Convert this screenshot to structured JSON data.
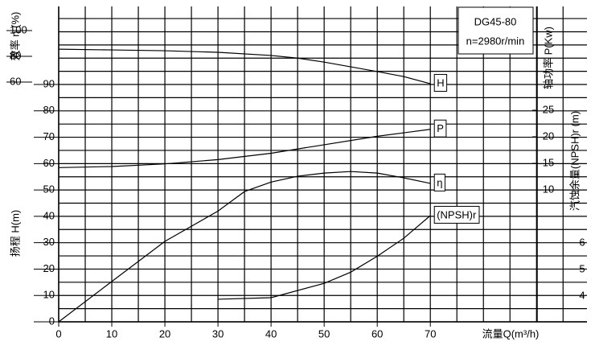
{
  "chart_data": {
    "type": "line",
    "title": "DG45-80",
    "subtitle": "n=2980r/min",
    "x_label": "流量Q(m³/h)",
    "y_label": "扬程 H(m)",
    "y2_label": "轴功率 P(Kw)",
    "y3_label": "汽蚀余量(NPSH)r (m)",
    "eta_label": "效率 η (%)",
    "xlim": [
      0,
      99.5
    ],
    "xticks": [
      0,
      10,
      20,
      30,
      40,
      50,
      60,
      70
    ],
    "ylim": [
      0,
      119.6
    ],
    "yticks": [
      0,
      10,
      20,
      30,
      40,
      50,
      60,
      70,
      80,
      90
    ],
    "y2lim": [
      -14.85,
      44.55
    ],
    "y2ticks": [
      10,
      15,
      20,
      25
    ],
    "y3lim": [
      3.03,
      14.91
    ],
    "y3ticks": [
      4,
      5,
      6
    ],
    "etalim": [
      -126.25,
      118.75
    ],
    "etaticks": [
      60,
      80,
      100
    ],
    "grid_x": [
      0,
      5,
      10,
      15,
      20,
      25,
      30,
      35,
      40,
      45,
      50,
      55,
      60,
      65,
      70,
      75,
      80,
      85,
      90,
      95
    ],
    "grid_y": [
      0,
      5,
      10,
      15,
      20,
      25,
      30,
      35,
      40,
      45,
      50,
      55,
      60,
      65,
      70,
      75,
      80,
      85,
      90,
      95,
      100,
      105,
      110,
      115
    ],
    "series": [
      {
        "name": "H",
        "color": "#000000",
        "axis": "y",
        "x": [
          0,
          10,
          20,
          30,
          40,
          45,
          50,
          55,
          60,
          65,
          70
        ],
        "values": [
          103.4,
          103.1,
          102.8,
          102.2,
          101,
          100,
          98.5,
          96.7,
          94.9,
          93,
          90.3
        ]
      },
      {
        "name": "P",
        "color": "#000000",
        "axis": "y2",
        "x": [
          0,
          10,
          20,
          30,
          40,
          50,
          60,
          70
        ],
        "values": [
          14.2,
          14.4,
          14.9,
          15.7,
          16.9,
          18.5,
          20.1,
          21.4
        ]
      },
      {
        "name": "η",
        "color": "#000000",
        "axis": "y",
        "x": [
          0,
          10,
          20,
          30,
          35,
          40,
          45,
          50,
          55,
          60,
          65,
          70
        ],
        "values": [
          0,
          15.3,
          30.5,
          42,
          49.4,
          53,
          55.2,
          56.4,
          57,
          56.4,
          54.6,
          52.5
        ]
      },
      {
        "name": "(NPSH)r",
        "color": "#000000",
        "axis": "y3",
        "x": [
          30,
          40,
          50,
          55,
          60,
          65,
          70
        ],
        "values": [
          3.88,
          3.94,
          4.48,
          4.9,
          5.5,
          6.18,
          7.03
        ]
      }
    ]
  }
}
